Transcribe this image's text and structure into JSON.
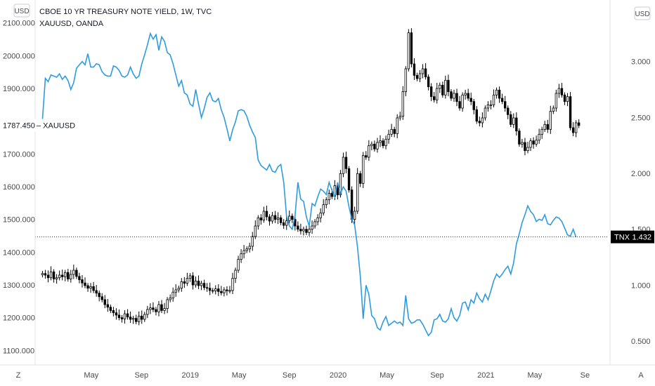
{
  "chart_data": {
    "type": "line",
    "legend": [
      "CBOE 10 YR TREASURY NOTE YIELD, 1W, TVC",
      "XAUUSD, OANDA"
    ],
    "left_axis": {
      "currency_label": "USD",
      "ticks": [
        "1100.000",
        "1200.000",
        "1300.000",
        "1400.000",
        "1500.000",
        "1600.000",
        "1700.000",
        "1900.000",
        "2000.000",
        "2100.000"
      ],
      "tick_values": [
        1100,
        1200,
        1300,
        1400,
        1500,
        1600,
        1700,
        1900,
        2000,
        2100
      ],
      "range": [
        1060,
        2170
      ]
    },
    "right_axis": {
      "currency_label": "USD",
      "ticks": [
        "0.500",
        "1.000",
        "1.500",
        "2.000",
        "2.500",
        "3.000"
      ],
      "tick_values": [
        0.5,
        1.0,
        1.5,
        2.0,
        2.5,
        3.0
      ],
      "range": [
        0.3,
        3.55
      ]
    },
    "x_axis": {
      "labels": [
        "May",
        "Sep",
        "2019",
        "May",
        "Sep",
        "2020",
        "May",
        "Sep",
        "2021",
        "May",
        "Se"
      ],
      "label_dates": [
        2018.33,
        2018.67,
        2019.0,
        2019.33,
        2019.67,
        2020.0,
        2020.33,
        2020.67,
        2021.0,
        2021.33,
        2021.67
      ],
      "range": [
        2017.96,
        2021.83
      ],
      "corner_left": "Z",
      "corner_right": "A"
    },
    "price_labels": {
      "gold_last": "1787.450",
      "gold_name": "XAUUSD",
      "tnx_name": "TNX",
      "tnx_last": "1.432",
      "tnx_last_value": 1.432
    },
    "series": [
      {
        "name": "XAUUSD, OANDA",
        "type": "candlestick",
        "axis": "left",
        "start": 2018.0,
        "step": 0.0192,
        "closes": [
          1335,
          1330,
          1322,
          1340,
          1318,
          1322,
          1330,
          1325,
          1338,
          1318,
          1332,
          1345,
          1326,
          1316,
          1306,
          1298,
          1290,
          1295,
          1283,
          1275,
          1264,
          1255,
          1240,
          1232,
          1222,
          1215,
          1208,
          1200,
          1196,
          1212,
          1202,
          1195,
          1198,
          1188,
          1205,
          1195,
          1210,
          1225,
          1230,
          1225,
          1218,
          1240,
          1222,
          1228,
          1255,
          1260,
          1278,
          1285,
          1290,
          1310,
          1305,
          1320,
          1328,
          1300,
          1312,
          1298,
          1305,
          1292,
          1290,
          1283,
          1282,
          1288,
          1280,
          1276,
          1285,
          1282,
          1283,
          1320,
          1345,
          1378,
          1395,
          1405,
          1410,
          1418,
          1448,
          1480,
          1505,
          1498,
          1525,
          1508,
          1495,
          1512,
          1500,
          1505,
          1490,
          1482,
          1496,
          1510,
          1500,
          1480,
          1470,
          1465,
          1470,
          1460,
          1470,
          1480,
          1493,
          1505,
          1520,
          1545,
          1560,
          1580,
          1570,
          1603,
          1575,
          1640,
          1690,
          1655,
          1590,
          1500,
          1525,
          1640,
          1610,
          1695,
          1690,
          1725,
          1730,
          1715,
          1735,
          1740,
          1725,
          1745,
          1760,
          1775,
          1762,
          1810,
          1815,
          1890,
          1960,
          2070,
          1975,
          1940,
          1930,
          1945,
          1960,
          1935,
          1905,
          1875,
          1865,
          1900,
          1910,
          1880,
          1925,
          1890,
          1870,
          1885,
          1860,
          1840,
          1880,
          1885,
          1870,
          1860,
          1835,
          1800,
          1795,
          1810,
          1840,
          1850,
          1850,
          1880,
          1895,
          1870,
          1860,
          1840,
          1820,
          1790,
          1810,
          1770,
          1730,
          1735,
          1710,
          1720,
          1740,
          1730,
          1742,
          1760,
          1775,
          1790,
          1775,
          1830,
          1840,
          1885,
          1900,
          1880,
          1860,
          1875,
          1780,
          1765,
          1795,
          1787
        ]
      },
      {
        "name": "CBOE 10 YR TREASURY NOTE YIELD, 1W, TVC",
        "type": "line",
        "axis": "right",
        "color": "#2e9be0",
        "start": 2018.0,
        "step": 0.0192,
        "values": [
          2.48,
          2.85,
          2.82,
          2.88,
          2.87,
          2.86,
          2.89,
          2.84,
          2.87,
          2.83,
          2.75,
          2.81,
          2.94,
          2.97,
          3.0,
          2.97,
          3.07,
          2.95,
          2.95,
          2.98,
          2.97,
          2.91,
          2.88,
          2.87,
          2.87,
          2.96,
          2.95,
          2.92,
          2.87,
          2.86,
          2.88,
          2.95,
          2.89,
          2.85,
          2.87,
          2.98,
          3.06,
          3.15,
          3.25,
          3.2,
          3.24,
          3.1,
          3.22,
          3.18,
          3.08,
          3.06,
          2.98,
          2.88,
          2.78,
          2.83,
          2.72,
          2.7,
          2.62,
          2.6,
          2.75,
          2.62,
          2.5,
          2.58,
          2.68,
          2.72,
          2.65,
          2.64,
          2.67,
          2.57,
          2.5,
          2.4,
          2.29,
          2.39,
          2.46,
          2.56,
          2.57,
          2.56,
          2.51,
          2.43,
          2.37,
          2.32,
          2.12,
          2.07,
          2.05,
          2.03,
          2.08,
          2.02,
          2.01,
          2.06,
          2.08,
          1.92,
          1.62,
          1.53,
          1.5,
          1.62,
          1.92,
          1.77,
          1.75,
          1.61,
          1.53,
          1.73,
          1.71,
          1.79,
          1.86,
          1.84,
          1.81,
          1.92,
          1.85,
          1.79,
          1.92,
          1.82,
          1.88,
          1.84,
          1.7,
          1.59,
          1.54,
          1.34,
          1.08,
          0.7,
          1.0,
          0.92,
          0.73,
          0.7,
          0.62,
          0.6,
          0.67,
          0.72,
          0.64,
          0.66,
          0.68,
          0.66,
          0.67,
          0.64,
          0.91,
          0.7,
          0.66,
          0.67,
          0.69,
          0.69,
          0.65,
          0.6,
          0.55,
          0.58,
          0.69,
          0.7,
          0.74,
          0.68,
          0.67,
          0.7,
          0.79,
          0.71,
          0.68,
          0.73,
          0.84,
          0.85,
          0.78,
          0.87,
          0.84,
          0.93,
          0.88,
          0.85,
          0.92,
          0.87,
          0.95,
          1.04,
          1.1,
          1.07,
          1.1,
          1.14,
          1.17,
          1.1,
          1.2,
          1.37,
          1.46,
          1.56,
          1.63,
          1.71,
          1.66,
          1.63,
          1.57,
          1.59,
          1.58,
          1.63,
          1.55,
          1.54,
          1.58,
          1.61,
          1.6,
          1.57,
          1.51,
          1.45,
          1.44,
          1.5,
          1.43
        ]
      }
    ],
    "grid": false,
    "dotted_reference_line": true
  }
}
